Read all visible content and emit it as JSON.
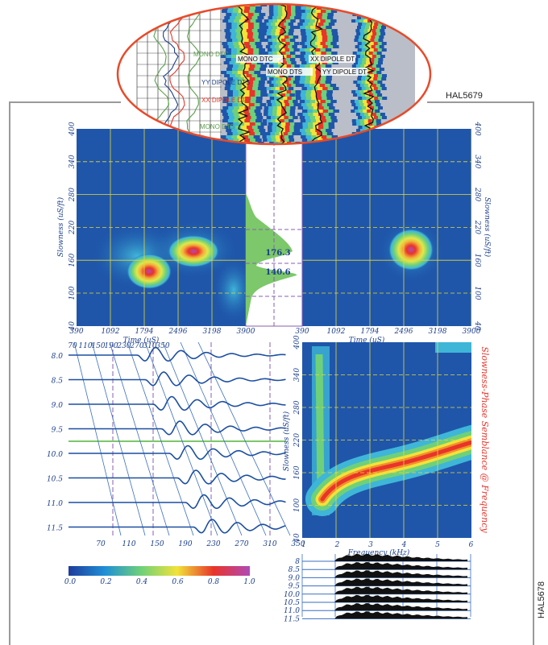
{
  "header": {
    "code_top": "HAL5679",
    "code_side": "HAL5678"
  },
  "log_inset": {
    "left_labels": [
      "MONO DTC",
      "YY DIPOLE DTS",
      "XX DIPOLE DTS",
      "MONO DTS"
    ],
    "right_labels": [
      "MONO DTC",
      "XX DIPOLE DT",
      "MONO DTS",
      "YY DIPOLE DT"
    ]
  },
  "time_semblance": {
    "y_label": "Slowness (uS/ft)",
    "y_ticks": [
      "400",
      "340",
      "280",
      "220",
      "160",
      "100",
      "40"
    ],
    "x_label": "Time (uS)",
    "x_ticks": [
      "390",
      "1092",
      "1794",
      "2496",
      "3198",
      "3900"
    ],
    "projection_peaks": [
      "176.3",
      "140.6"
    ]
  },
  "waveforms": {
    "depth_labels": [
      "8.0",
      "8.5",
      "9.0",
      "9.5",
      "10.0",
      "10.5",
      "11.0",
      "11.5"
    ],
    "top_ticks": [
      "70",
      "110",
      "150",
      "190",
      "230",
      "270",
      "310",
      "350"
    ],
    "bottom_ticks": [
      "70",
      "110",
      "150",
      "190",
      "230",
      "270",
      "310",
      "350"
    ]
  },
  "colorbar": {
    "ticks": [
      "0.0",
      "0.2",
      "0.4",
      "0.6",
      "0.8",
      "1.0"
    ]
  },
  "frequency_semblance": {
    "title": "Slowness-Phase Semblance @ Frequency",
    "y_label": "Slowness (uS/ft)",
    "y_ticks": [
      "400",
      "340",
      "280",
      "220",
      "160",
      "100",
      "40"
    ],
    "x_label": "Frequency (kHz)",
    "x_ticks": [
      "1",
      "2",
      "3",
      "4",
      "5",
      "6"
    ]
  },
  "spectra": {
    "labels": [
      "8",
      "8.5",
      "9.0",
      "9.5",
      "10.0",
      "10.5",
      "11.0",
      "11.5"
    ]
  }
}
